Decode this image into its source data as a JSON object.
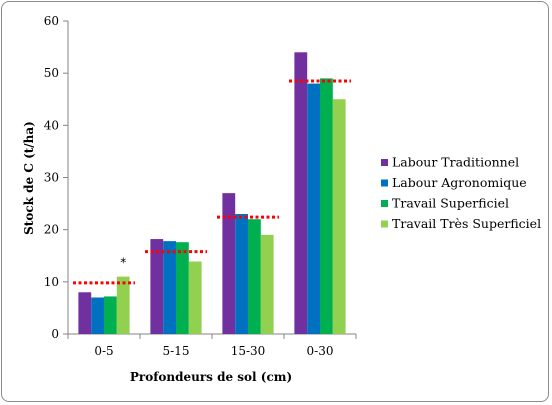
{
  "chart_data": {
    "type": "bar",
    "ylabel": "Stock de C (t/ha)",
    "xlabel": "Profondeurs de sol (cm)",
    "categories": [
      "0-5",
      "5-15",
      "15-30",
      "0-30"
    ],
    "ylim": [
      0,
      60
    ],
    "yticks": [
      "0",
      "10",
      "20",
      "30",
      "40",
      "50",
      "60"
    ],
    "legend_position": "right",
    "series": [
      {
        "name": "Labour Traditionnel",
        "color": "#7030a0",
        "values": [
          8,
          18.2,
          27,
          54
        ]
      },
      {
        "name": "Labour Agronomique",
        "color": "#0070c0",
        "values": [
          7,
          17.8,
          23,
          48
        ]
      },
      {
        "name": "Travail Superficiel",
        "color": "#00b050",
        "values": [
          7.2,
          17.6,
          22,
          49
        ]
      },
      {
        "name": "Travail Très Superficiel",
        "color": "#92d050",
        "values": [
          11,
          13.9,
          19,
          45
        ]
      }
    ],
    "reference_lines": {
      "color": "#ff0000",
      "values": [
        9.8,
        15.8,
        22.4,
        48.5
      ]
    },
    "annotation": {
      "text": "*",
      "category": "0-5",
      "series": "Travail Très Superficiel"
    },
    "grid": false
  }
}
